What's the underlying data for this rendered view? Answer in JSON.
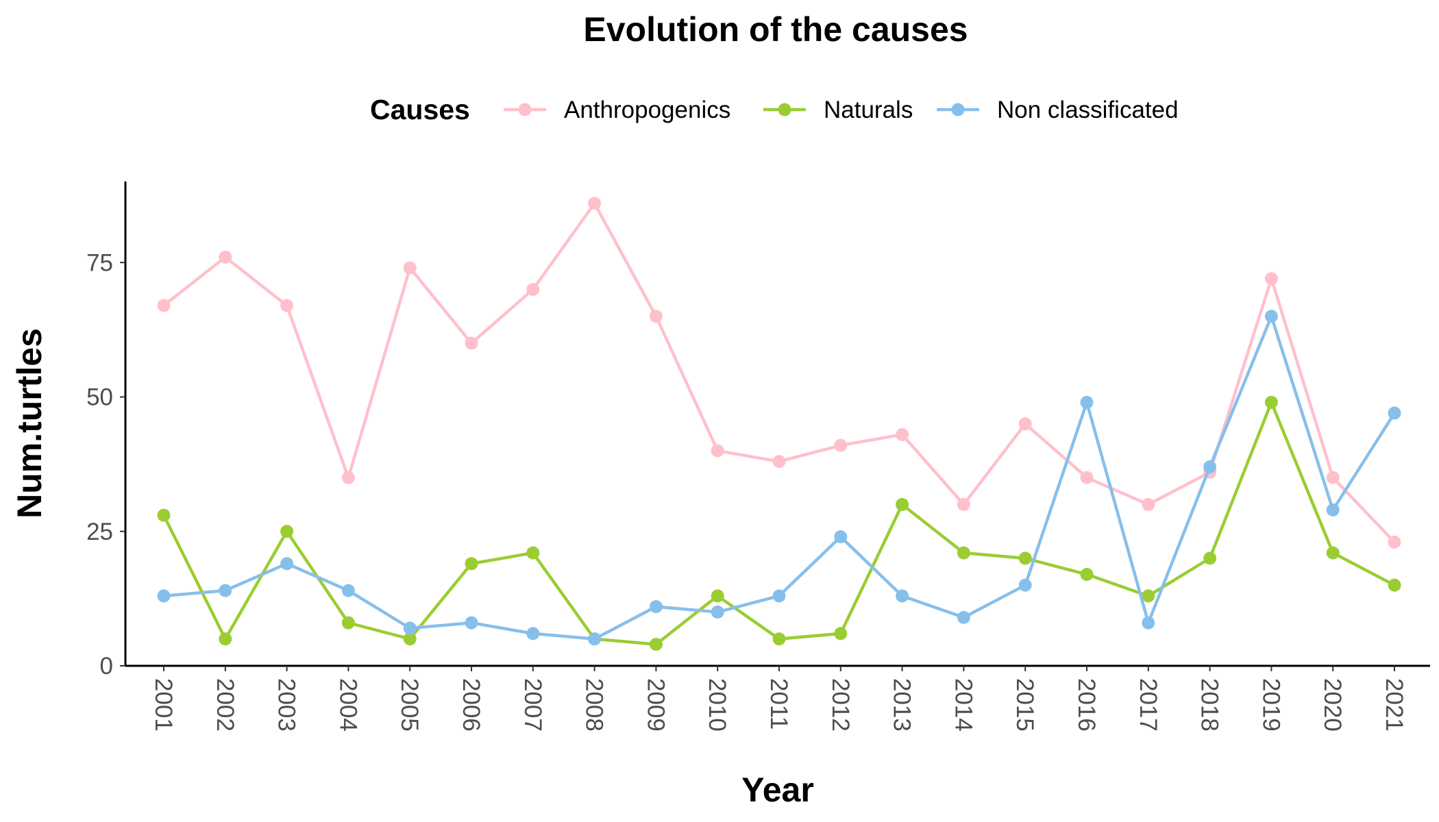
{
  "chart_data": {
    "type": "line",
    "title": "Evolution of the causes",
    "xlabel": "Year",
    "ylabel": "Num.turtles",
    "x": [
      "2001",
      "2002",
      "2003",
      "2004",
      "2005",
      "2006",
      "2007",
      "2008",
      "2009",
      "2010",
      "2011",
      "2012",
      "2013",
      "2014",
      "2015",
      "2016",
      "2017",
      "2018",
      "2019",
      "2020",
      "2021"
    ],
    "yticks": [
      0,
      25,
      50,
      75
    ],
    "ylim": [
      0,
      90
    ],
    "grid": false,
    "legend": {
      "title": "Causes",
      "position": "top"
    },
    "series": [
      {
        "name": "Anthropogenics",
        "color": "#FFC0CB",
        "values": [
          67,
          76,
          67,
          35,
          74,
          60,
          70,
          86,
          65,
          40,
          38,
          41,
          43,
          30,
          45,
          35,
          30,
          36,
          72,
          35,
          23
        ]
      },
      {
        "name": "Naturals",
        "color": "#9ACD32",
        "values": [
          28,
          5,
          25,
          8,
          5,
          19,
          21,
          5,
          4,
          13,
          5,
          6,
          30,
          21,
          20,
          17,
          13,
          20,
          49,
          21,
          15
        ]
      },
      {
        "name": "Non classificated",
        "color": "#87BFEB",
        "values": [
          13,
          14,
          19,
          14,
          7,
          8,
          6,
          5,
          11,
          10,
          13,
          24,
          13,
          9,
          15,
          49,
          8,
          37,
          65,
          29,
          47
        ]
      }
    ]
  }
}
